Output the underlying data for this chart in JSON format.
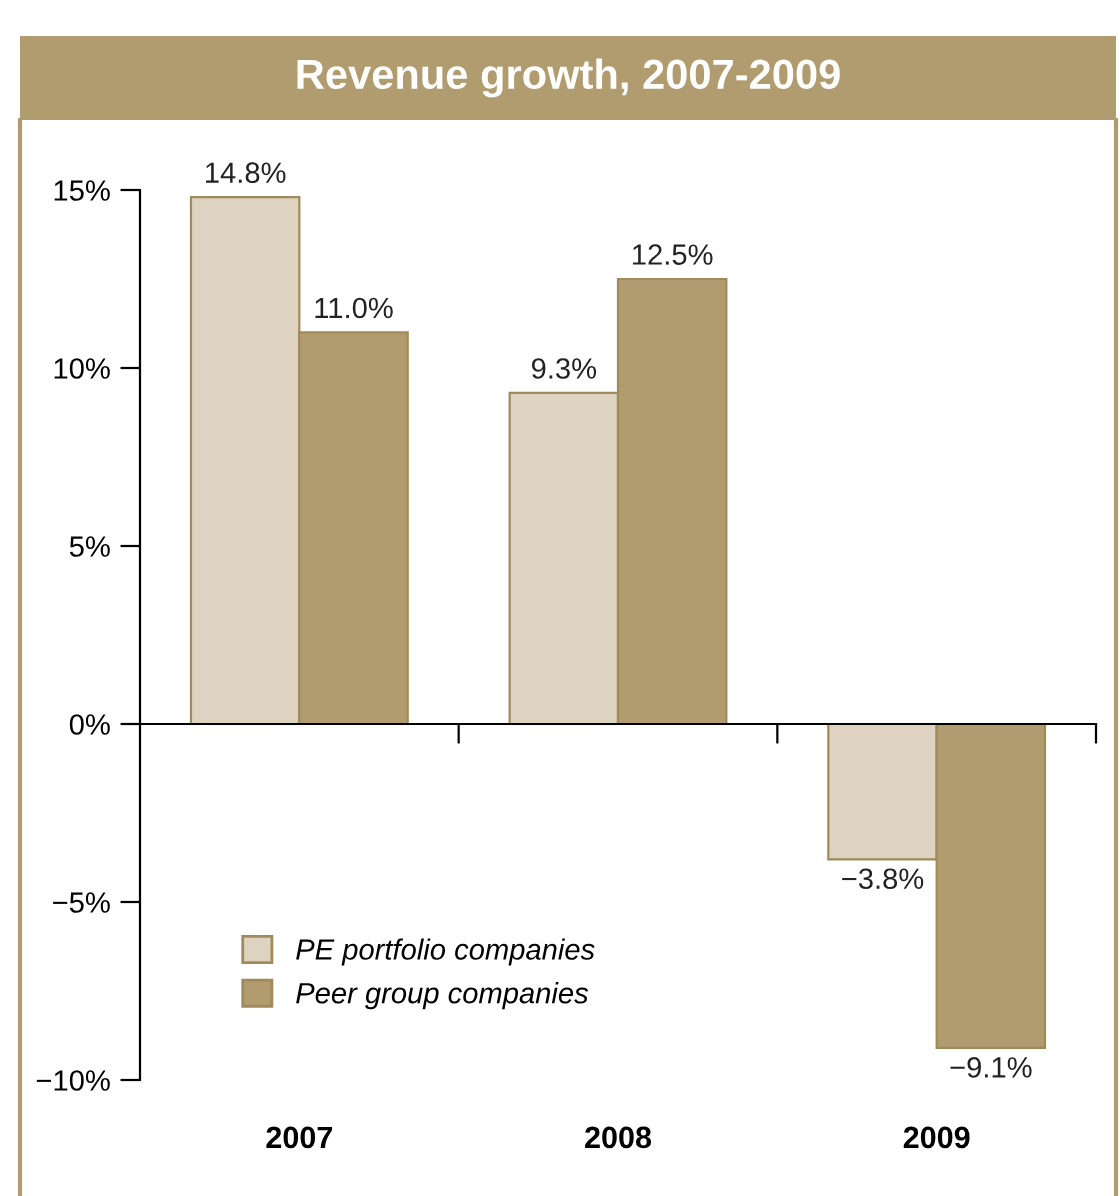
{
  "chart_data": {
    "type": "bar",
    "title": "Revenue growth, 2007-2009",
    "categories": [
      "2007",
      "2008",
      "2009"
    ],
    "series": [
      {
        "name": "PE portfolio companies",
        "color": "#ddd3c0",
        "values": [
          14.8,
          9.3,
          -3.8
        ],
        "value_labels": [
          "14.8%",
          "9.3%",
          "−3.8%"
        ]
      },
      {
        "name": "Peer group companies",
        "color": "#b19c6f",
        "values": [
          11.0,
          12.5,
          -9.1
        ],
        "value_labels": [
          "11.0%",
          "12.5%",
          "−9.1%"
        ]
      }
    ],
    "ylim": [
      -10,
      15
    ],
    "yticks": [
      {
        "value": -10,
        "label": "−10%"
      },
      {
        "value": -5,
        "label": "−5%"
      },
      {
        "value": 0,
        "label": "0%"
      },
      {
        "value": 5,
        "label": "5%"
      },
      {
        "value": 10,
        "label": "10%"
      },
      {
        "value": 15,
        "label": "15%"
      }
    ],
    "legend": "bottom left"
  }
}
